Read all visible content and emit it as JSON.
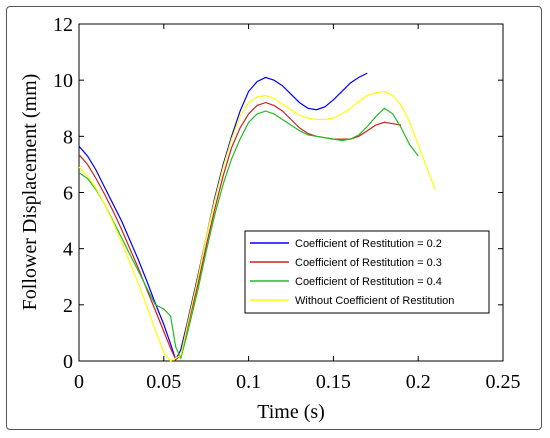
{
  "chart_data": {
    "type": "line",
    "title": "",
    "xlabel": "Time (s)",
    "ylabel": "Follower Displacement (mm)",
    "xlim": [
      0,
      0.25
    ],
    "ylim": [
      0,
      12
    ],
    "xticks": [
      0,
      0.05,
      0.1,
      0.15,
      0.2,
      0.25
    ],
    "xtick_labels": [
      "0",
      "0.05",
      "0.1",
      "0.15",
      "0.2",
      "0.25"
    ],
    "yticks": [
      0,
      2,
      4,
      6,
      8,
      10,
      12
    ],
    "ytick_labels": [
      "0",
      "2",
      "4",
      "6",
      "8",
      "10",
      "12"
    ],
    "grid": false,
    "legend_position": "bottom-right",
    "series": [
      {
        "name": "Coefficient of Restitution = 0.2",
        "color": "#0000ff",
        "points": [
          [
            0,
            7.65
          ],
          [
            0.005,
            7.3
          ],
          [
            0.01,
            6.8
          ],
          [
            0.015,
            6.2
          ],
          [
            0.02,
            5.6
          ],
          [
            0.025,
            5.0
          ],
          [
            0.03,
            4.3
          ],
          [
            0.035,
            3.6
          ],
          [
            0.04,
            2.85
          ],
          [
            0.045,
            2.05
          ],
          [
            0.05,
            1.3
          ],
          [
            0.054,
            0.6
          ],
          [
            0.057,
            0.05
          ],
          [
            0.06,
            0.4
          ],
          [
            0.064,
            1.4
          ],
          [
            0.07,
            3.0
          ],
          [
            0.075,
            4.4
          ],
          [
            0.08,
            5.8
          ],
          [
            0.085,
            7.0
          ],
          [
            0.09,
            8.0
          ],
          [
            0.095,
            8.9
          ],
          [
            0.1,
            9.6
          ],
          [
            0.105,
            9.95
          ],
          [
            0.11,
            10.1
          ],
          [
            0.115,
            10.0
          ],
          [
            0.12,
            9.8
          ],
          [
            0.125,
            9.5
          ],
          [
            0.13,
            9.2
          ],
          [
            0.135,
            9.0
          ],
          [
            0.14,
            8.95
          ],
          [
            0.145,
            9.05
          ],
          [
            0.15,
            9.3
          ],
          [
            0.155,
            9.6
          ],
          [
            0.16,
            9.9
          ],
          [
            0.165,
            10.1
          ],
          [
            0.17,
            10.25
          ]
        ]
      },
      {
        "name": "Coefficient of Restitution = 0.3",
        "color": "#cc2222",
        "points": [
          [
            0,
            7.35
          ],
          [
            0.005,
            7.0
          ],
          [
            0.01,
            6.5
          ],
          [
            0.015,
            5.95
          ],
          [
            0.02,
            5.35
          ],
          [
            0.025,
            4.7
          ],
          [
            0.03,
            4.0
          ],
          [
            0.035,
            3.3
          ],
          [
            0.04,
            2.55
          ],
          [
            0.045,
            1.8
          ],
          [
            0.05,
            1.05
          ],
          [
            0.054,
            0.45
          ],
          [
            0.057,
            0.05
          ],
          [
            0.06,
            0.2
          ],
          [
            0.064,
            1.2
          ],
          [
            0.07,
            2.7
          ],
          [
            0.075,
            4.1
          ],
          [
            0.08,
            5.4
          ],
          [
            0.085,
            6.6
          ],
          [
            0.09,
            7.6
          ],
          [
            0.095,
            8.3
          ],
          [
            0.1,
            8.8
          ],
          [
            0.105,
            9.1
          ],
          [
            0.11,
            9.2
          ],
          [
            0.115,
            9.1
          ],
          [
            0.12,
            8.9
          ],
          [
            0.125,
            8.6
          ],
          [
            0.13,
            8.3
          ],
          [
            0.135,
            8.1
          ],
          [
            0.14,
            8.0
          ],
          [
            0.145,
            7.95
          ],
          [
            0.15,
            7.9
          ],
          [
            0.155,
            7.9
          ],
          [
            0.16,
            7.9
          ],
          [
            0.165,
            8.0
          ],
          [
            0.17,
            8.2
          ],
          [
            0.175,
            8.4
          ],
          [
            0.18,
            8.5
          ],
          [
            0.185,
            8.45
          ],
          [
            0.19,
            8.4
          ]
        ]
      },
      {
        "name": "Coefficient of Restitution = 0.4",
        "color": "#22bb22",
        "points": [
          [
            0,
            6.7
          ],
          [
            0.005,
            6.5
          ],
          [
            0.01,
            6.1
          ],
          [
            0.015,
            5.6
          ],
          [
            0.02,
            5.0
          ],
          [
            0.025,
            4.4
          ],
          [
            0.03,
            3.8
          ],
          [
            0.035,
            3.2
          ],
          [
            0.04,
            2.6
          ],
          [
            0.045,
            2.0
          ],
          [
            0.05,
            1.85
          ],
          [
            0.054,
            1.6
          ],
          [
            0.057,
            0.5
          ],
          [
            0.06,
            0.1
          ],
          [
            0.064,
            1.0
          ],
          [
            0.07,
            2.5
          ],
          [
            0.075,
            3.9
          ],
          [
            0.08,
            5.2
          ],
          [
            0.085,
            6.3
          ],
          [
            0.09,
            7.2
          ],
          [
            0.095,
            7.9
          ],
          [
            0.1,
            8.5
          ],
          [
            0.105,
            8.8
          ],
          [
            0.11,
            8.9
          ],
          [
            0.115,
            8.8
          ],
          [
            0.12,
            8.6
          ],
          [
            0.125,
            8.4
          ],
          [
            0.13,
            8.2
          ],
          [
            0.135,
            8.05
          ],
          [
            0.14,
            8.0
          ],
          [
            0.145,
            7.95
          ],
          [
            0.15,
            7.9
          ],
          [
            0.155,
            7.85
          ],
          [
            0.16,
            7.9
          ],
          [
            0.165,
            8.05
          ],
          [
            0.17,
            8.35
          ],
          [
            0.175,
            8.7
          ],
          [
            0.18,
            9.0
          ],
          [
            0.185,
            8.8
          ],
          [
            0.19,
            8.3
          ],
          [
            0.195,
            7.7
          ],
          [
            0.2,
            7.3
          ]
        ]
      },
      {
        "name": "Without Coefficient of Restitution",
        "color": "#ffff00",
        "points": [
          [
            0,
            6.9
          ],
          [
            0.005,
            6.6
          ],
          [
            0.01,
            6.15
          ],
          [
            0.015,
            5.6
          ],
          [
            0.02,
            4.95
          ],
          [
            0.025,
            4.25
          ],
          [
            0.03,
            3.5
          ],
          [
            0.035,
            2.75
          ],
          [
            0.04,
            1.95
          ],
          [
            0.045,
            1.1
          ],
          [
            0.05,
            0.3
          ],
          [
            0.054,
            0.0
          ],
          [
            0.06,
            0.2
          ],
          [
            0.064,
            1.3
          ],
          [
            0.07,
            2.9
          ],
          [
            0.075,
            4.4
          ],
          [
            0.08,
            5.7
          ],
          [
            0.085,
            6.9
          ],
          [
            0.09,
            7.9
          ],
          [
            0.095,
            8.7
          ],
          [
            0.1,
            9.2
          ],
          [
            0.105,
            9.4
          ],
          [
            0.11,
            9.45
          ],
          [
            0.115,
            9.35
          ],
          [
            0.12,
            9.15
          ],
          [
            0.125,
            8.95
          ],
          [
            0.13,
            8.75
          ],
          [
            0.135,
            8.65
          ],
          [
            0.14,
            8.6
          ],
          [
            0.145,
            8.6
          ],
          [
            0.15,
            8.65
          ],
          [
            0.155,
            8.8
          ],
          [
            0.16,
            9.0
          ],
          [
            0.165,
            9.25
          ],
          [
            0.17,
            9.45
          ],
          [
            0.175,
            9.55
          ],
          [
            0.18,
            9.6
          ],
          [
            0.185,
            9.45
          ],
          [
            0.19,
            9.1
          ],
          [
            0.195,
            8.5
          ],
          [
            0.2,
            7.7
          ],
          [
            0.205,
            6.9
          ],
          [
            0.21,
            6.1
          ]
        ]
      }
    ]
  }
}
